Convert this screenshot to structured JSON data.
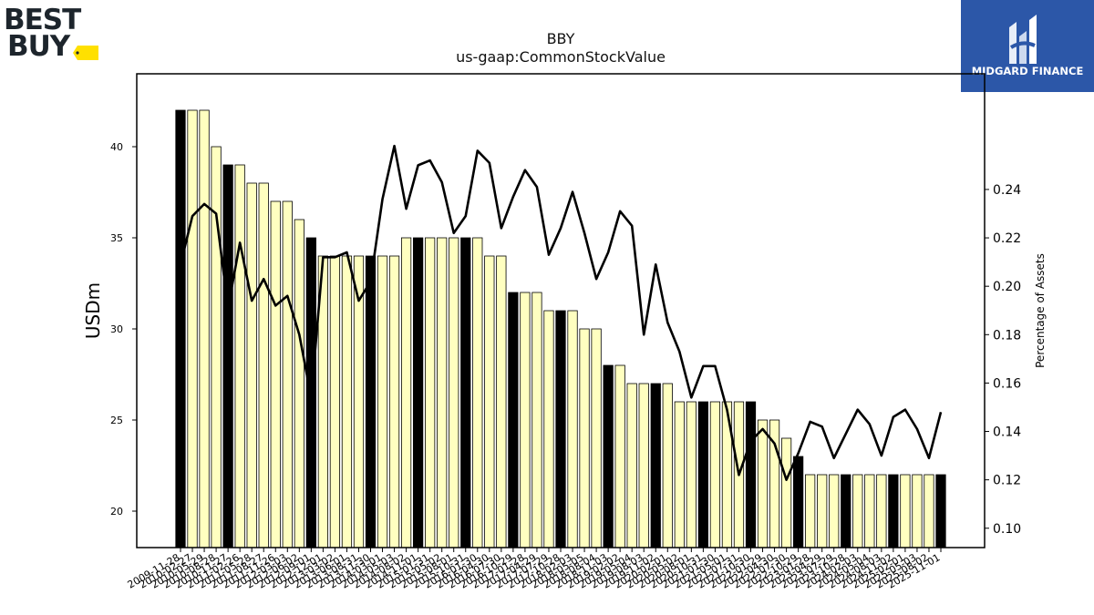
{
  "header": {
    "brand_logo_text": [
      "BEST",
      "BUY"
    ],
    "sponsor_logo_text": "MIDGARD FINANCE"
  },
  "chart_data": {
    "type": "bar",
    "title": "BBY",
    "subtitle": "us-gaap:CommonStockValue",
    "ylabel": "USDm",
    "ylabel_right": "Percentage of Assets",
    "ylim": [
      18,
      44
    ],
    "ylim_right": [
      0.092,
      0.2878
    ],
    "yticks": [
      20,
      25,
      30,
      35,
      40
    ],
    "yticks_right": [
      0.1,
      0.12,
      0.14,
      0.16,
      0.18,
      0.2,
      0.22,
      0.24
    ],
    "grid": false,
    "colors": {
      "bar_fill": "#ffffc0",
      "bar_highlight": "#000000",
      "line": "#000000"
    },
    "categories": [
      "2009-11-28",
      "2010-02-27",
      "2010-05-29",
      "2010-08-28",
      "2010-11-27",
      "2011-02-26",
      "2011-05-28",
      "2011-08-27",
      "2011-11-26",
      "2012-03-03",
      "2012-06-02",
      "2012-09-01",
      "2012-12-01",
      "2013-03-02",
      "2013-06-01",
      "2013-08-31",
      "2013-11-30",
      "2014-03-01",
      "2014-05-03",
      "2014-08-02",
      "2014-11-01",
      "2015-01-31",
      "2015-05-02",
      "2015-08-01",
      "2015-10-31",
      "2016-01-30",
      "2016-04-30",
      "2016-07-30",
      "2016-10-29",
      "2017-01-28",
      "2017-04-29",
      "2017-07-29",
      "2017-10-28",
      "2018-02-03",
      "2018-05-05",
      "2018-08-04",
      "2018-11-03",
      "2019-02-02",
      "2019-05-04",
      "2019-08-03",
      "2019-11-02",
      "2020-02-01",
      "2020-05-02",
      "2020-08-01",
      "2020-10-31",
      "2021-01-30",
      "2021-05-01",
      "2021-07-31",
      "2021-10-30",
      "2022-01-29",
      "2022-04-30",
      "2022-07-30",
      "2022-10-29",
      "2023-01-28",
      "2023-04-29",
      "2023-07-29",
      "2023-10-28",
      "2024-02-03",
      "2024-05-04",
      "2024-08-03",
      "2024-11-02",
      "2025-02-01",
      "2025-05-03",
      "2025-08-02",
      "2025-11-01"
    ],
    "xtick_labels_visible": [
      "2009-11-28",
      "2010-02-27",
      "2010-05-29",
      "2010-08-28",
      "2010-11-27",
      "2011-02-26",
      "2011-05-28",
      "2011-08-27",
      "2011-11-26",
      "2012-03-03",
      "2012-06-02",
      "2012-09-01",
      "2012-12-01",
      "2013-03-02",
      "2013-06-01",
      "2013-08-31",
      "2013-11-30",
      "2014-03-01",
      "2014-05-03",
      "2014-08-02",
      "2014-11-01",
      "2015-01-31",
      "2015-05-02",
      "2015-08-01",
      "2015-10-31",
      "2016-01-30",
      "2016-04-30",
      "2016-07-30",
      "2016-10-29",
      "2017-01-28",
      "2017-04-29",
      "2017-07-29",
      "2017-10-28",
      "2018-02-03",
      "2018-05-05",
      "2018-08-04",
      "2018-11-03",
      "2019-02-02",
      "2019-05-04",
      "2019-08-03",
      "2019-11-02",
      "2020-02-01",
      "2020-05-02",
      "2020-08-01",
      "2020-10-31",
      "2021-01-30",
      "2021-05-01",
      "2021-07-31",
      "2021-10-30",
      "2022-01-29",
      "2022-04-30",
      "2022-07-30",
      "2022-10-29",
      "2023-01-28",
      "2023-04-29",
      "2023-07-29",
      "2023-10-28",
      "2024-02-03",
      "2024-05-04",
      "2024-08-03",
      "2024-11-02",
      "2025-02-01",
      "2025-05-03",
      "2025-08-02",
      "2025-11-01"
    ],
    "series": [
      {
        "type": "bar",
        "axis": "left",
        "values": [
          42,
          42,
          42,
          40,
          39,
          39,
          38,
          38,
          37,
          37,
          36,
          35,
          34,
          34,
          34,
          34,
          34,
          34,
          34,
          35,
          35,
          35,
          35,
          35,
          35,
          35,
          34,
          34,
          32,
          32,
          32,
          31,
          31,
          31,
          30,
          30,
          28,
          28,
          27,
          27,
          27,
          27,
          26,
          26,
          26,
          26,
          26,
          26,
          26,
          25,
          25,
          24,
          23,
          22,
          22,
          22,
          22,
          22,
          22,
          22,
          22,
          22,
          22,
          22,
          22
        ],
        "highlight": [
          true,
          false,
          false,
          false,
          true,
          false,
          false,
          false,
          false,
          false,
          false,
          true,
          false,
          false,
          false,
          false,
          true,
          false,
          false,
          false,
          true,
          false,
          false,
          false,
          true,
          false,
          false,
          false,
          true,
          false,
          false,
          false,
          true,
          false,
          false,
          false,
          true,
          false,
          false,
          false,
          true,
          false,
          false,
          false,
          true,
          false,
          false,
          false,
          true,
          false,
          false,
          false,
          true,
          false,
          false,
          false,
          true,
          false,
          false,
          false,
          true,
          false,
          false,
          false,
          true
        ]
      },
      {
        "type": "line",
        "axis": "right",
        "values": [
          0.209,
          0.229,
          0.234,
          0.23,
          0.191,
          0.218,
          0.194,
          0.203,
          0.192,
          0.196,
          0.18,
          0.154,
          0.212,
          0.212,
          0.214,
          0.194,
          0.202,
          0.236,
          0.258,
          0.232,
          0.25,
          0.252,
          0.243,
          0.222,
          0.229,
          0.256,
          0.251,
          0.224,
          0.237,
          0.248,
          0.241,
          0.213,
          0.224,
          0.239,
          0.222,
          0.203,
          0.214,
          0.231,
          0.225,
          0.18,
          0.209,
          0.185,
          0.173,
          0.154,
          0.167,
          0.167,
          0.149,
          0.122,
          0.136,
          0.141,
          0.135,
          0.12,
          0.131,
          0.144,
          0.142,
          0.129,
          0.139,
          0.149,
          0.143,
          0.13,
          0.146,
          0.149,
          0.141,
          0.129,
          0.148
        ]
      }
    ]
  }
}
